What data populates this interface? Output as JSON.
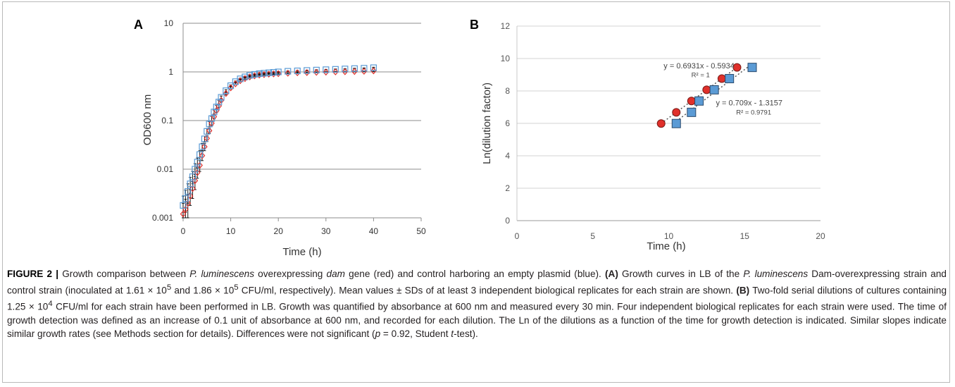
{
  "panel_a_label": "A",
  "panel_b_label": "B",
  "chart_data": [
    {
      "panel": "A",
      "type": "scatter",
      "xlabel": "Time (h)",
      "ylabel": "OD600 nm",
      "xlim": [
        0,
        50
      ],
      "ylim": [
        0.001,
        10
      ],
      "y_scale": "log",
      "x_ticks": [
        0,
        10,
        20,
        30,
        40,
        50
      ],
      "y_ticks": [
        0.001,
        0.01,
        0.1,
        1,
        10
      ],
      "y_tick_labels": [
        "0.001",
        "0.01",
        "0.1",
        "1",
        "10"
      ],
      "grid": "horizontal",
      "series": [
        {
          "color": "#e0302b",
          "marker": "diamond",
          "x": [
            0,
            0.5,
            1,
            1.5,
            2,
            2.5,
            3,
            3.5,
            4,
            4.5,
            5,
            5.5,
            6,
            6.5,
            7,
            7.5,
            8,
            9,
            10,
            11,
            12,
            13,
            14,
            15,
            16,
            17,
            18,
            19,
            20,
            22,
            24,
            26,
            28,
            30,
            32,
            34,
            36,
            38,
            40
          ],
          "y": [
            0.0012,
            0.0015,
            0.002,
            0.0028,
            0.004,
            0.0058,
            0.0085,
            0.012,
            0.019,
            0.029,
            0.043,
            0.062,
            0.088,
            0.12,
            0.16,
            0.2,
            0.26,
            0.36,
            0.47,
            0.57,
            0.66,
            0.73,
            0.79,
            0.83,
            0.86,
            0.88,
            0.9,
            0.91,
            0.92,
            0.94,
            0.96,
            0.97,
            0.98,
            0.99,
            1.0,
            1.01,
            1.02,
            1.03,
            1.05
          ],
          "y_err": [
            0.0008,
            0.0009,
            0.001,
            0.001,
            0.0015,
            0.002,
            0.002,
            0.003,
            0.004,
            0.005,
            0.006,
            0.008,
            0.01,
            0.012,
            0.014,
            0.016,
            0.02,
            0.02,
            0.02,
            0.02,
            0.02,
            0.02,
            0.02,
            0.02,
            0.02,
            0.02,
            0.02,
            0.02,
            0.02,
            0.02,
            0.02,
            0.02,
            0.02,
            0.02,
            0.02,
            0.02,
            0.02,
            0.02,
            0.03
          ]
        },
        {
          "color": "#5b9bd5",
          "marker": "square-open",
          "x": [
            0,
            0.5,
            1,
            1.5,
            2,
            2.5,
            3,
            3.5,
            4,
            4.5,
            5,
            5.5,
            6,
            6.5,
            7,
            7.5,
            8,
            9,
            10,
            11,
            12,
            13,
            14,
            15,
            16,
            17,
            18,
            19,
            20,
            22,
            24,
            26,
            28,
            30,
            32,
            34,
            36,
            38,
            40
          ],
          "y": [
            0.0018,
            0.0025,
            0.0035,
            0.005,
            0.007,
            0.01,
            0.014,
            0.02,
            0.029,
            0.042,
            0.06,
            0.085,
            0.11,
            0.15,
            0.19,
            0.24,
            0.3,
            0.41,
            0.52,
            0.63,
            0.72,
            0.79,
            0.85,
            0.89,
            0.92,
            0.94,
            0.96,
            0.98,
            1.0,
            1.03,
            1.05,
            1.07,
            1.09,
            1.11,
            1.13,
            1.15,
            1.17,
            1.19,
            1.22
          ],
          "y_err": [
            0.001,
            0.0012,
            0.0015,
            0.0018,
            0.002,
            0.003,
            0.003,
            0.004,
            0.005,
            0.006,
            0.008,
            0.01,
            0.012,
            0.014,
            0.016,
            0.02,
            0.02,
            0.02,
            0.02,
            0.02,
            0.02,
            0.02,
            0.02,
            0.02,
            0.02,
            0.02,
            0.02,
            0.02,
            0.02,
            0.02,
            0.02,
            0.02,
            0.02,
            0.02,
            0.02,
            0.02,
            0.02,
            0.02,
            0.03
          ]
        }
      ]
    },
    {
      "panel": "B",
      "type": "scatter",
      "xlabel": "Time (h)",
      "ylabel": "Ln(dilution factor)",
      "xlim": [
        0,
        20
      ],
      "ylim": [
        0,
        12
      ],
      "x_ticks": [
        0,
        5,
        10,
        15,
        20
      ],
      "y_ticks": [
        0,
        2,
        4,
        6,
        8,
        10,
        12
      ],
      "grid": "horizontal",
      "series": [
        {
          "color": "#e0302b",
          "marker": "circle",
          "x": [
            9.5,
            10.5,
            11.5,
            12.5,
            13.5,
            14.5
          ],
          "y": [
            5.99,
            6.68,
            7.38,
            8.07,
            8.76,
            9.45
          ]
        },
        {
          "color": "#5b9bd5",
          "marker": "square",
          "x": [
            10.5,
            11.5,
            12.0,
            13.0,
            14.0,
            15.5
          ],
          "y": [
            5.99,
            6.68,
            7.38,
            8.07,
            8.76,
            9.45
          ]
        }
      ],
      "trendlines": [
        {
          "slope": 0.6931,
          "intercept": -0.5934,
          "x_range": [
            9.5,
            14.5
          ]
        },
        {
          "slope": 0.709,
          "intercept": -1.3157,
          "x_range": [
            10.5,
            15.5
          ]
        }
      ],
      "annotations": [
        {
          "text": "y = 0.6931x - 0.5934",
          "x": 12.0,
          "y": 9.4
        },
        {
          "text": "R² = 1",
          "x": 12.1,
          "y": 8.85
        },
        {
          "text": "y = 0.709x - 1.3157",
          "x": 15.3,
          "y": 7.1
        },
        {
          "text": "R² = 0.9791",
          "x": 15.6,
          "y": 6.55
        }
      ]
    }
  ],
  "caption": {
    "figure_label": "FIGURE 2 |",
    "s1": " Growth comparison between ",
    "s2": "P. luminescens",
    "s3": " overexpressing ",
    "s4": "dam",
    "s5": " gene (red) and control harboring an empty plasmid (blue). ",
    "s6": "(A)",
    "s7": " Growth curves in LB of the ",
    "s8": "P. luminescens",
    "s9": " Dam-overexpressing strain and control strain (inoculated at 1.61 × 10",
    "s10": "5",
    "s11": " and 1.86 × 10",
    "s12": "5",
    "s13": " CFU/ml, respectively). Mean values ± SDs of at least 3 independent biological replicates for each strain are shown. ",
    "s14": "(B)",
    "s15": " Two-fold serial dilutions of cultures containing 1.25 × 10",
    "s16": "4",
    "s17": " CFU/ml for each strain have been performed in LB. Growth was quantified by absorbance at 600 nm and measured every 30 min. Four independent biological replicates for each strain were used. The time of growth detection was defined as an increase of 0.1 unit of absorbance at 600 nm, and recorded for each dilution. The Ln of the dilutions as a function of the time for growth detection is indicated. Similar slopes indicate similar growth rates (see Methods section for details). Differences were not significant (",
    "s18": "p",
    "s19": " = 0.92, Student ",
    "s20": "t",
    "s21": "-test)."
  }
}
